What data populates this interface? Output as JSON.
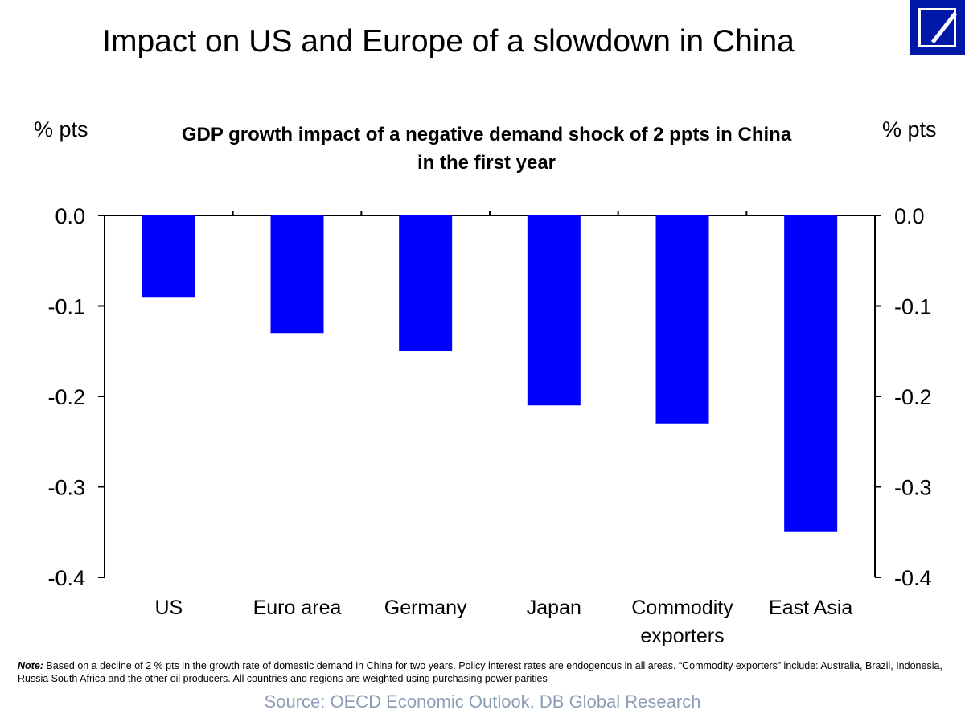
{
  "slide": {
    "title": "Impact on US and Europe of a slowdown in China",
    "unit_left": "% pts",
    "unit_right": "% pts",
    "note_label": "Note:",
    "note_text": " Based on a decline of 2 % pts in the growth rate of domestic demand in China for two years. Policy interest rates are endogenous in all areas. “Commodity exporters” include: Australia, Brazil, Indonesia, Russia South Africa and the other oil producers. All countries and regions are weighted using purchasing power parities",
    "source": "Source: OECD Economic Outlook, DB Global Research"
  },
  "logo": {
    "color": "#0018a8"
  },
  "chart_data": {
    "type": "bar",
    "title_line1": "GDP growth impact of a negative demand shock of 2 ppts in China",
    "title_line2": "in the first year",
    "categories": [
      [
        "US"
      ],
      [
        "Euro area"
      ],
      [
        "Germany"
      ],
      [
        "Japan"
      ],
      [
        "Commodity",
        "exporters"
      ],
      [
        "East Asia"
      ]
    ],
    "values": [
      -0.09,
      -0.13,
      -0.15,
      -0.21,
      -0.23,
      -0.35
    ],
    "ylim": [
      -0.4,
      0.0
    ],
    "yticks": [
      "0.0",
      "-0.1",
      "-0.2",
      "-0.3",
      "-0.4"
    ],
    "bar_color": "#0000ff",
    "grid": false,
    "secondary_axis": true
  }
}
